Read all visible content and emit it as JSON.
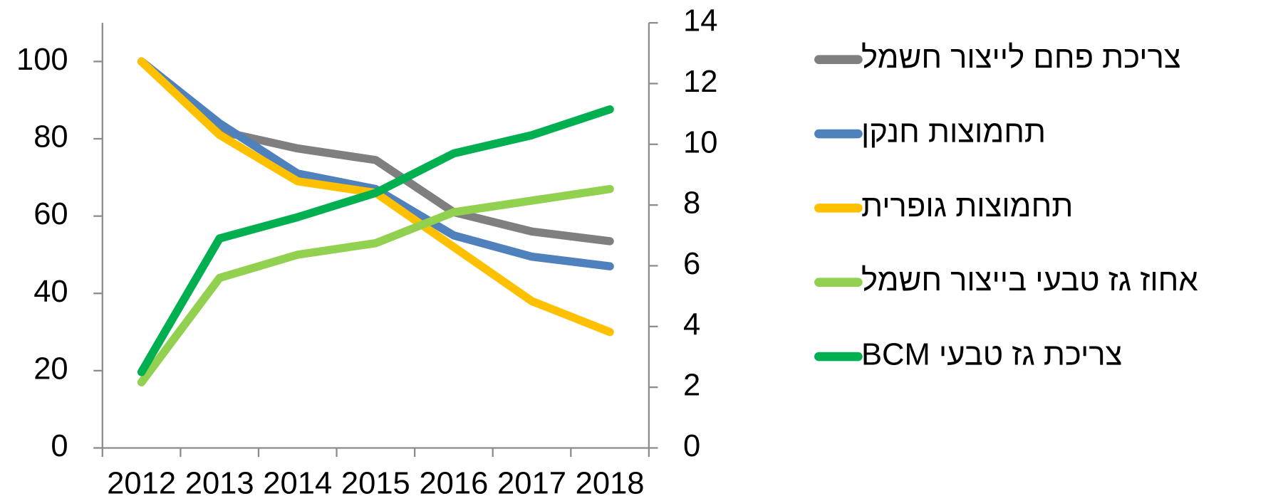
{
  "chart_data": {
    "type": "line",
    "categories": [
      "2012",
      "2013",
      "2014",
      "2015",
      "2016",
      "2017",
      "2018"
    ],
    "ylim": [
      0,
      110
    ],
    "yticks": [
      0,
      20,
      40,
      60,
      80,
      100
    ],
    "y2lim": [
      0,
      14
    ],
    "y2ticks": [
      0,
      2,
      4,
      6,
      8,
      10,
      12,
      14
    ],
    "series": [
      {
        "name": "צריכת פחם לייצור חשמל",
        "color": "#7f7f7f",
        "values": [
          100,
          82,
          77.5,
          74.5,
          61,
          56,
          53.5
        ]
      },
      {
        "name": "תחמוצות חנקן",
        "color": "#4f81bd",
        "values": [
          100,
          84,
          71,
          67,
          55,
          49.5,
          47
        ]
      },
      {
        "name": "תחמוצות גופרית",
        "color": "#ffc000",
        "values": [
          100,
          81,
          69,
          66,
          52,
          38,
          30
        ]
      },
      {
        "name": "אחוז גז טבעי בייצור חשמל",
        "color": "#92d050",
        "values": [
          17,
          44,
          50,
          53,
          61,
          64,
          67
        ]
      },
      {
        "name": "צריכת גז טבעי BCM",
        "color": "#00b050",
        "axis": "y2",
        "values": [
          2.5,
          6.9,
          7.6,
          8.4,
          9.7,
          10.3,
          11.15
        ]
      }
    ]
  }
}
